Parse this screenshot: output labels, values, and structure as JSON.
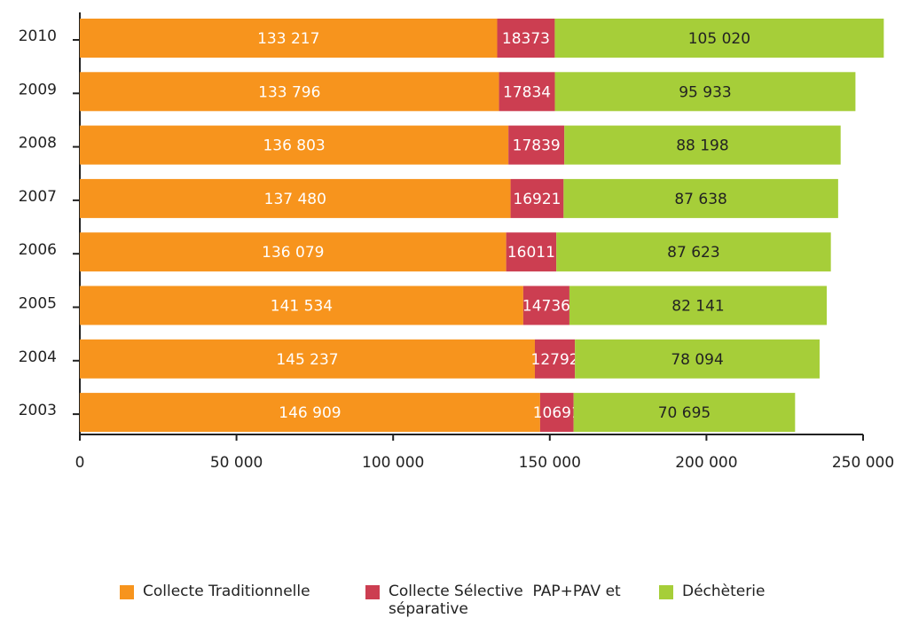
{
  "chart_data": {
    "type": "stacked_barh",
    "categories": [
      "2010",
      "2009",
      "2008",
      "2007",
      "2006",
      "2005",
      "2004",
      "2003"
    ],
    "series": [
      {
        "name": "Collecte Traditionnelle",
        "color": "#f7941d",
        "values": [
          133217,
          133796,
          136803,
          137480,
          136079,
          141534,
          145237,
          146909
        ],
        "value_labels": [
          "133 217",
          "133 796",
          "136 803",
          "137 480",
          "136 079",
          "141 534",
          "145 237",
          "146 909"
        ]
      },
      {
        "name": "Collecte Sélective  PAP+PAV et séparative",
        "color": "#cc3e51",
        "values": [
          18373,
          17834,
          17839,
          16921,
          16011,
          14736,
          12792,
          10691
        ]
      },
      {
        "name": "Déchèterie",
        "color": "#a6ce39",
        "values": [
          105020,
          95933,
          88198,
          87638,
          87623,
          82141,
          78094,
          70695
        ],
        "value_labels": [
          "105 020",
          "95 933",
          "88 198",
          "87 638",
          "87 623",
          "82 141",
          "78 094",
          "70 695"
        ]
      }
    ],
    "xlim": [
      0,
      250000
    ],
    "xticks": [
      0,
      {
        "value": 50000,
        "label": "50 000"
      },
      {
        "value": 100000,
        "label": "100 000"
      },
      {
        "value": 150000,
        "label": "150 000"
      },
      {
        "value": 200000,
        "label": "200 000"
      },
      {
        "value": 250000,
        "label": "250 000"
      }
    ],
    "legend": "bottom"
  }
}
